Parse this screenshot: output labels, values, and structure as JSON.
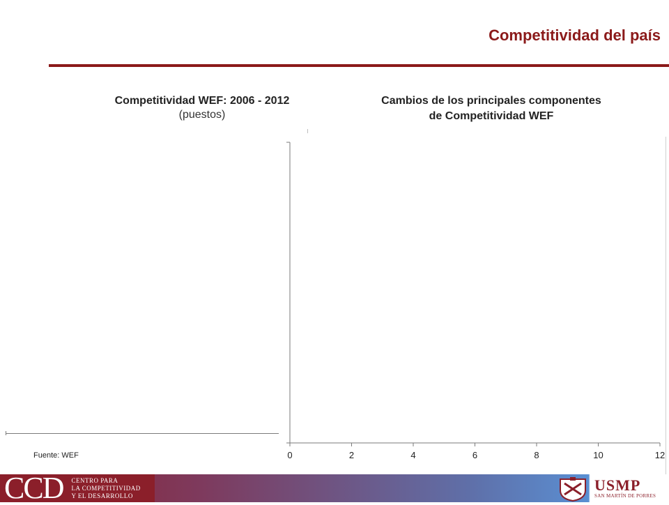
{
  "page": {
    "title": "Competitividad del país",
    "source": "Fuente: WEF"
  },
  "left_chart": {
    "title": "Competitividad WEF: 2006 - 2012",
    "subtitle": "(puestos)"
  },
  "right_chart": {
    "title_line1": "Cambios de los principales componentes",
    "title_line2": "de Competitividad WEF"
  },
  "footer": {
    "ccd_mark": "CCD",
    "ccd_line1": "CENTRO PARA",
    "ccd_line2": "LA COMPETITIVIDAD",
    "ccd_line3": "Y EL DESARROLLO",
    "usmp_name": "USMP",
    "usmp_sub": "SAN MARTÍN DE PORRES"
  },
  "colors": {
    "accent": "#8b1a1a",
    "axis": "#7a7a7a"
  },
  "chart_data": {
    "type": "bar",
    "orientation": "horizontal",
    "title": "Cambios de los principales componentes de Competitividad WEF",
    "xlim": [
      0,
      12
    ],
    "x_ticks": [
      "0",
      "2",
      "4",
      "6",
      "8",
      "10",
      "12"
    ],
    "categories": [],
    "series": []
  }
}
